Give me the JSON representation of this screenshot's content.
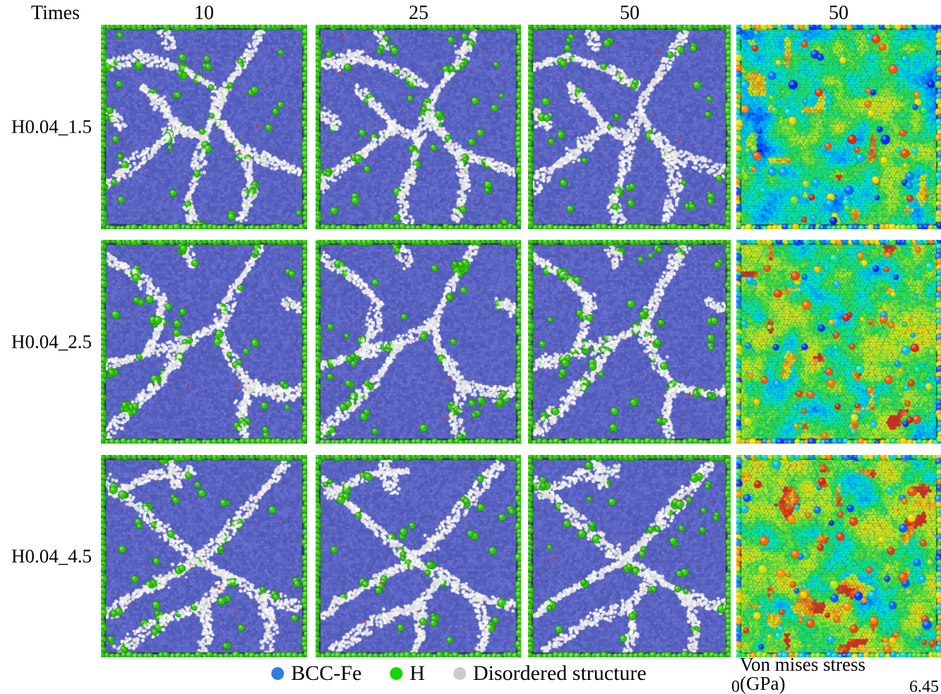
{
  "header": {
    "times_label": "Times",
    "columns": [
      "10",
      "25",
      "50",
      "50"
    ]
  },
  "rows": [
    {
      "label": "H0.04_1.5",
      "stress_level": 0.42,
      "network": [
        [
          [
            0.03,
            0.2
          ],
          [
            0.2,
            0.16
          ],
          [
            0.4,
            0.22
          ],
          [
            0.54,
            0.3
          ]
        ],
        [
          [
            0.78,
            0.03
          ],
          [
            0.68,
            0.2
          ],
          [
            0.58,
            0.34
          ],
          [
            0.55,
            0.43
          ]
        ],
        [
          [
            0.2,
            0.3
          ],
          [
            0.3,
            0.4
          ],
          [
            0.38,
            0.5
          ]
        ],
        [
          [
            0.38,
            0.5
          ],
          [
            0.5,
            0.56
          ],
          [
            0.55,
            0.43
          ]
        ],
        [
          [
            0.55,
            0.43
          ],
          [
            0.63,
            0.55
          ],
          [
            0.7,
            0.63
          ],
          [
            0.97,
            0.72
          ]
        ],
        [
          [
            0.38,
            0.5
          ],
          [
            0.24,
            0.62
          ],
          [
            0.1,
            0.72
          ],
          [
            0.02,
            0.79
          ]
        ],
        [
          [
            0.5,
            0.56
          ],
          [
            0.47,
            0.72
          ],
          [
            0.42,
            0.86
          ],
          [
            0.45,
            0.98
          ]
        ],
        [
          [
            0.7,
            0.63
          ],
          [
            0.73,
            0.8
          ],
          [
            0.68,
            0.96
          ]
        ],
        [
          [
            0.03,
            0.42
          ],
          [
            0.11,
            0.5
          ]
        ],
        [
          [
            0.3,
            0.02
          ],
          [
            0.34,
            0.12
          ]
        ]
      ]
    },
    {
      "label": "H0.04_2.5",
      "stress_level": 0.5,
      "network": [
        [
          [
            0.02,
            0.08
          ],
          [
            0.18,
            0.18
          ],
          [
            0.3,
            0.3
          ]
        ],
        [
          [
            0.3,
            0.3
          ],
          [
            0.28,
            0.44
          ],
          [
            0.22,
            0.56
          ]
        ],
        [
          [
            0.78,
            0.03
          ],
          [
            0.66,
            0.22
          ],
          [
            0.57,
            0.42
          ]
        ],
        [
          [
            0.57,
            0.42
          ],
          [
            0.61,
            0.55
          ],
          [
            0.72,
            0.72
          ],
          [
            0.92,
            0.76
          ],
          [
            0.99,
            0.72
          ]
        ],
        [
          [
            0.02,
            0.62
          ],
          [
            0.22,
            0.56
          ],
          [
            0.42,
            0.5
          ],
          [
            0.57,
            0.42
          ]
        ],
        [
          [
            0.42,
            0.5
          ],
          [
            0.3,
            0.68
          ],
          [
            0.12,
            0.86
          ],
          [
            0.02,
            0.97
          ]
        ],
        [
          [
            0.72,
            0.72
          ],
          [
            0.68,
            0.85
          ],
          [
            0.7,
            0.98
          ]
        ],
        [
          [
            0.4,
            0.01
          ],
          [
            0.45,
            0.13
          ]
        ],
        [
          [
            0.88,
            0.3
          ],
          [
            0.97,
            0.34
          ]
        ]
      ]
    },
    {
      "label": "H0.04_4.5",
      "stress_level": 0.58,
      "network": [
        [
          [
            0.05,
            0.2
          ],
          [
            0.25,
            0.1
          ],
          [
            0.45,
            0.08
          ]
        ],
        [
          [
            0.03,
            0.12
          ],
          [
            0.2,
            0.28
          ],
          [
            0.35,
            0.42
          ],
          [
            0.47,
            0.52
          ]
        ],
        [
          [
            0.9,
            0.04
          ],
          [
            0.75,
            0.22
          ],
          [
            0.6,
            0.4
          ],
          [
            0.47,
            0.52
          ]
        ],
        [
          [
            0.47,
            0.52
          ],
          [
            0.3,
            0.62
          ],
          [
            0.12,
            0.72
          ],
          [
            0.03,
            0.8
          ]
        ],
        [
          [
            0.47,
            0.52
          ],
          [
            0.62,
            0.6
          ],
          [
            0.78,
            0.7
          ],
          [
            0.97,
            0.75
          ]
        ],
        [
          [
            0.08,
            0.97
          ],
          [
            0.3,
            0.82
          ],
          [
            0.5,
            0.74
          ],
          [
            0.62,
            0.6
          ]
        ],
        [
          [
            0.78,
            0.7
          ],
          [
            0.83,
            0.85
          ],
          [
            0.8,
            0.97
          ]
        ],
        [
          [
            0.5,
            0.74
          ],
          [
            0.52,
            0.88
          ],
          [
            0.48,
            0.98
          ]
        ],
        [
          [
            0.33,
            0.03
          ],
          [
            0.37,
            0.16
          ]
        ]
      ]
    }
  ],
  "legend": {
    "items": [
      {
        "label": "BCC-Fe",
        "color": "#2d7ce0"
      },
      {
        "label": "H",
        "color": "#13d800"
      },
      {
        "label": "Disordered structure",
        "color": "#cbcbcb"
      }
    ]
  },
  "colorbar": {
    "title": "Von mises stress (GPa)",
    "min_label": "0",
    "max_label": "6.45",
    "stops": [
      "#0000c8",
      "#003cff",
      "#00aaff",
      "#00e6c8",
      "#28dc3c",
      "#a0eb1e",
      "#ebe100",
      "#ff8c00",
      "#dc140a"
    ]
  },
  "palette": {
    "bcc_background": "#4a52ad",
    "bcc_atom_base": [
      94,
      103,
      197
    ],
    "h_green": "#2fca0b",
    "h_green_edge": "rgba(18,90,2,0.85)",
    "disordered_white": "#e6e6e6",
    "frame": "#14141c"
  }
}
